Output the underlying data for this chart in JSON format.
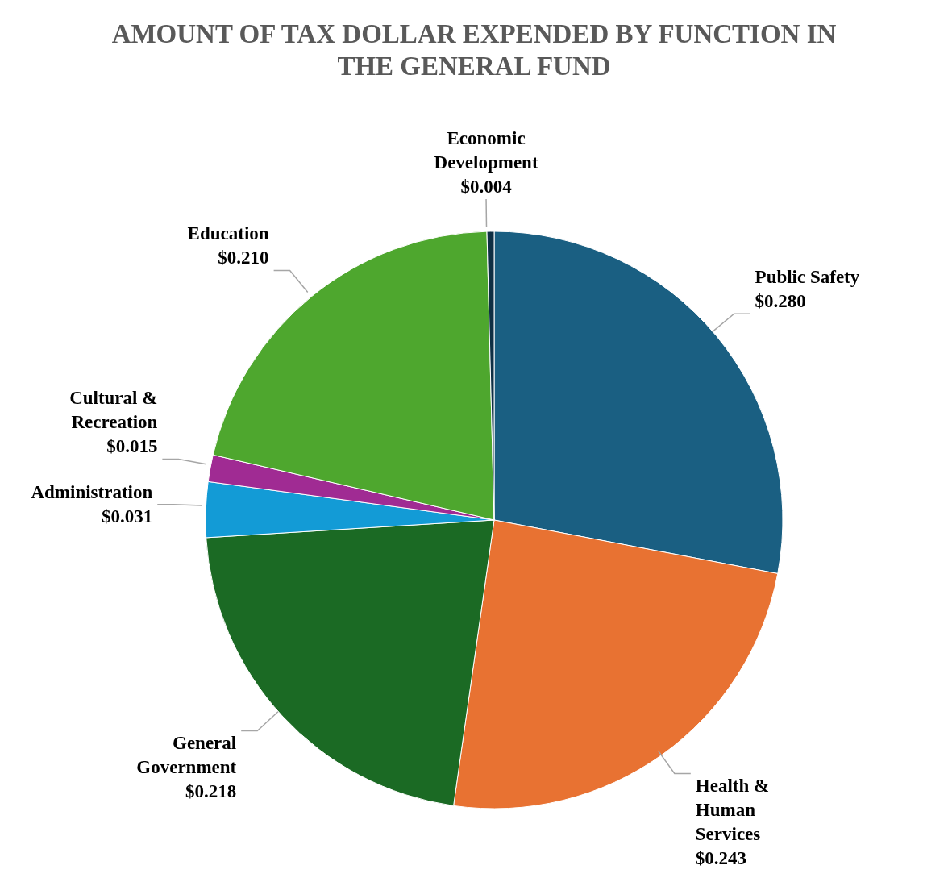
{
  "chart_data": {
    "type": "pie",
    "title": "AMOUNT OF TAX DOLLAR EXPENDED BY FUNCTION IN THE GENERAL FUND",
    "categories": [
      "Public Safety",
      "Health & Human Services",
      "General Government",
      "Administration",
      "Cultural & Recreation",
      "Education",
      "Economic Development"
    ],
    "values": [
      0.28,
      0.243,
      0.218,
      0.031,
      0.015,
      0.21,
      0.004
    ],
    "value_labels": [
      "$0.280",
      "$0.243",
      "$0.218",
      "$0.031",
      "$0.015",
      "$0.210",
      "$0.004"
    ],
    "colors": [
      "#1a5f82",
      "#e87232",
      "#1b6a24",
      "#139bd6",
      "#a02b93",
      "#4ea72e",
      "#0e2f44"
    ]
  }
}
